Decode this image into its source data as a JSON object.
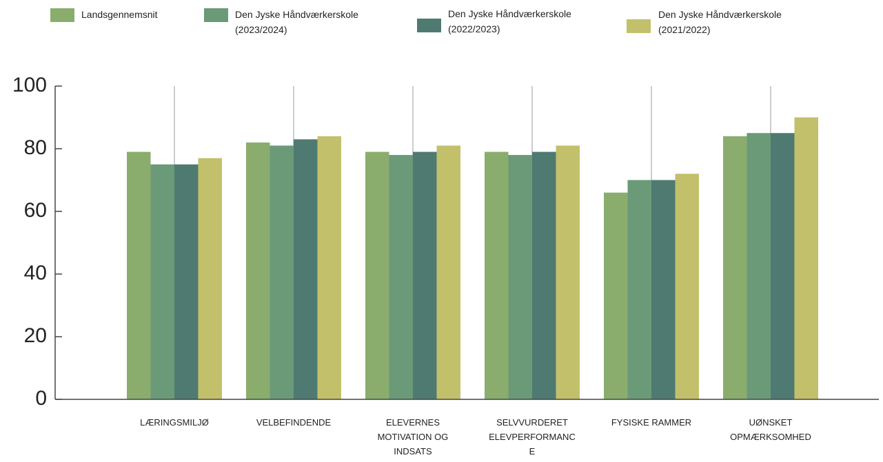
{
  "chart_data": {
    "type": "bar",
    "categories": [
      "LÆRINGSMILJØ",
      "VELBEFINDENDE",
      "ELEVERNES\nMOTIVATION OG\nINDSATS",
      "SELVVURDERET\nELEVPERFORMANC\nE",
      "FYSISKE RAMMER",
      "UØNSKET\nOPMÆRKSOMHED"
    ],
    "series": [
      {
        "name": "Landsgennemsnit",
        "color": "#8aad6e",
        "values": [
          79,
          82,
          79,
          79,
          66,
          84
        ]
      },
      {
        "name": "Den Jyske Håndværkerskole\n(2023/2024)",
        "color": "#6a9a78",
        "values": [
          75,
          81,
          78,
          78,
          70,
          85
        ]
      },
      {
        "name": "Den Jyske Håndværkerskole\n(2022/2023)",
        "color": "#4f7a72",
        "values": [
          75,
          83,
          79,
          79,
          70,
          85
        ]
      },
      {
        "name": "Den Jyske Håndværkerskole\n(2021/2022)",
        "color": "#c2c06b",
        "values": [
          77,
          84,
          81,
          81,
          72,
          90
        ]
      }
    ],
    "ylim": [
      0,
      100
    ],
    "yticks": [
      0,
      20,
      40,
      60,
      80,
      100
    ],
    "grid": true
  }
}
